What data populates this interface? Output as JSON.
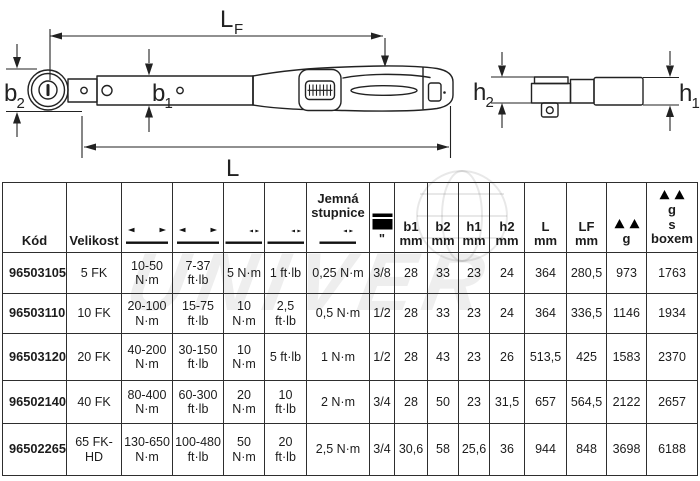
{
  "diagram": {
    "labels": {
      "lf": "L",
      "lf_sub": "F",
      "l": "L",
      "b": "b",
      "h": "h",
      "sub1": "1",
      "sub2": "2"
    }
  },
  "watermark": {
    "text": "UNIVER"
  },
  "table": {
    "header": {
      "kod": "Kód",
      "velikost": "Velikost",
      "jemna_line1": "Jemná",
      "jemna_line2": "stupnice",
      "inch_mark": "\"",
      "b1": "b1",
      "b2": "b2",
      "h1": "h1",
      "h2": "h2",
      "l": "L",
      "lf": "LF",
      "mm": "mm",
      "weight_g": "g",
      "boxed_g": "g",
      "boxed_s": "s",
      "boxed_boxem": "boxem",
      "icons": {
        "range": "measuring-range-icon",
        "division": "scale-division-icon",
        "square_drive": "square-drive-icon",
        "scale": "weighing-scale-icon"
      }
    },
    "rows": [
      [
        "96503105",
        "5 FK",
        "10-50 N·m",
        "7-37 ft·lb",
        "5 N·m",
        "1 ft·lb",
        "0,25 N·m",
        "3/8",
        "28",
        "33",
        "23",
        "24",
        "364",
        "280,5",
        "973",
        "1763"
      ],
      [
        "96503110",
        "10 FK",
        "20-100 N·m",
        "15-75 ft·lb",
        "10 N·m",
        "2,5 ft·lb",
        "0,5 N·m",
        "1/2",
        "28",
        "33",
        "23",
        "24",
        "364",
        "336,5",
        "1146",
        "1934"
      ],
      [
        "96503120",
        "20 FK",
        "40-200 N·m",
        "30-150 ft·lb",
        "10 N·m",
        "5 ft·lb",
        "1 N·m",
        "1/2",
        "28",
        "43",
        "23",
        "26",
        "513,5",
        "425",
        "1583",
        "2370"
      ],
      [
        "96502140",
        "40 FK",
        "80-400 N·m",
        "60-300 ft·lb",
        "20 N·m",
        "10 ft·lb",
        "2 N·m",
        "3/4",
        "28",
        "50",
        "23",
        "31,5",
        "657",
        "564,5",
        "2122",
        "2657"
      ],
      [
        "96502265",
        "65 FK-HD",
        "130-650 N·m",
        "100-480 ft·lb",
        "50 N·m",
        "20 ft·lb",
        "2,5 N·m",
        "3/4",
        "30,6",
        "58",
        "25,6",
        "36",
        "944",
        "848",
        "3698",
        "6188"
      ]
    ]
  }
}
